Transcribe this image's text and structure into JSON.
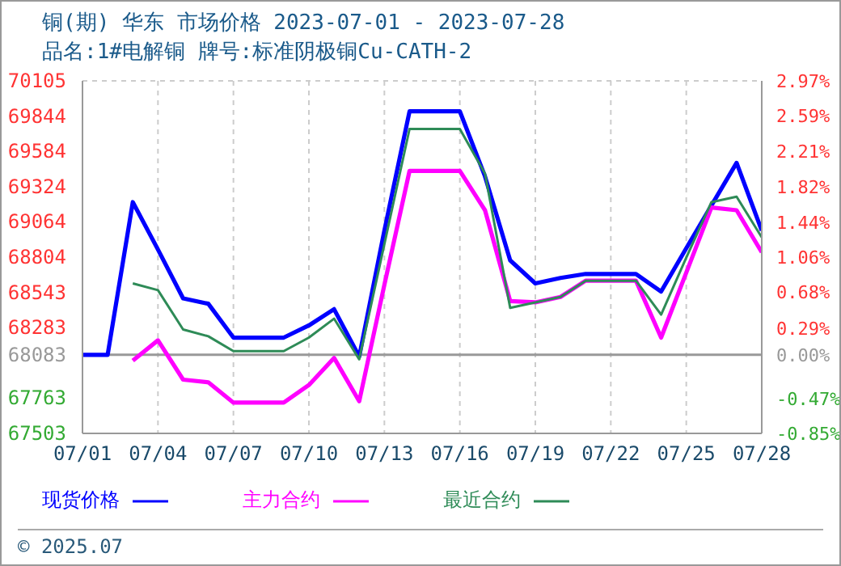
{
  "chart_data": {
    "type": "line",
    "title": "铜(期) 华东 市场价格 2023-07-01 - 2023-07-28",
    "subtitle": "品名:1#电解铜 牌号:标准阴极铜Cu-CATH-2",
    "x": [
      "2023-07-01",
      "2023-07-02",
      "2023-07-03",
      "2023-07-04",
      "2023-07-05",
      "2023-07-06",
      "2023-07-07",
      "2023-07-08",
      "2023-07-09",
      "2023-07-10",
      "2023-07-11",
      "2023-07-12",
      "2023-07-13",
      "2023-07-14",
      "2023-07-15",
      "2023-07-16",
      "2023-07-17",
      "2023-07-18",
      "2023-07-19",
      "2023-07-20",
      "2023-07-21",
      "2023-07-22",
      "2023-07-23",
      "2023-07-24",
      "2023-07-25",
      "2023-07-26",
      "2023-07-27",
      "2023-07-28"
    ],
    "series": [
      {
        "name": "现货价格",
        "color": "#0000ff",
        "values": [
          68083,
          68083,
          69210,
          68860,
          68500,
          68460,
          68210,
          68210,
          68210,
          68300,
          68420,
          68070,
          69000,
          69880,
          69880,
          69880,
          69400,
          68780,
          68610,
          68650,
          68680,
          68680,
          68680,
          68550,
          68870,
          69185,
          69500,
          69000
        ]
      },
      {
        "name": "主力合约",
        "color": "#ff00ff",
        "values": [
          null,
          null,
          68040,
          68190,
          67900,
          67880,
          67730,
          67730,
          67730,
          67860,
          68060,
          67740,
          68600,
          69440,
          69440,
          69440,
          69150,
          68480,
          68470,
          68510,
          68630,
          68630,
          68630,
          68210,
          68690,
          69170,
          69150,
          68840
        ]
      },
      {
        "name": "最近合约",
        "color": "#2e8b57",
        "values": [
          null,
          null,
          68610,
          68560,
          68270,
          68220,
          68110,
          68110,
          68110,
          68210,
          68350,
          68050,
          68900,
          69750,
          69750,
          69750,
          69420,
          68430,
          68470,
          68510,
          68630,
          68630,
          68630,
          68380,
          68800,
          69210,
          69250,
          68950
        ]
      }
    ],
    "xlim": [
      "2023-07-01",
      "2023-07-28"
    ],
    "xticks": [
      {
        "value": "2023-07-01",
        "label": "07/01"
      },
      {
        "value": "2023-07-04",
        "label": "07/04"
      },
      {
        "value": "2023-07-07",
        "label": "07/07"
      },
      {
        "value": "2023-07-10",
        "label": "07/10"
      },
      {
        "value": "2023-07-13",
        "label": "07/13"
      },
      {
        "value": "2023-07-16",
        "label": "07/16"
      },
      {
        "value": "2023-07-19",
        "label": "07/19"
      },
      {
        "value": "2023-07-22",
        "label": "07/22"
      },
      {
        "value": "2023-07-25",
        "label": "07/25"
      },
      {
        "value": "2023-07-28",
        "label": "07/28"
      }
    ],
    "ylim": [
      67503,
      70105
    ],
    "yticks": [
      67503,
      67763,
      68083,
      68283,
      68543,
      68804,
      69064,
      69324,
      69584,
      69844,
      70105
    ],
    "y2lim": [
      -0.85,
      2.97
    ],
    "y2ticks": [
      {
        "value": -0.85,
        "label": "-0.85%"
      },
      {
        "value": -0.47,
        "label": "-0.47%"
      },
      {
        "value": 0,
        "label": "0.00%"
      },
      {
        "value": 0.29,
        "label": "0.29%"
      },
      {
        "value": 0.68,
        "label": "0.68%"
      },
      {
        "value": 1.06,
        "label": "1.06%"
      },
      {
        "value": 1.44,
        "label": "1.44%"
      },
      {
        "value": 1.82,
        "label": "1.82%"
      },
      {
        "value": 2.21,
        "label": "2.21%"
      },
      {
        "value": 2.59,
        "label": "2.59%"
      },
      {
        "value": 2.97,
        "label": "2.97%"
      }
    ],
    "ref_lines": [
      {
        "axis": "y",
        "value": 68083,
        "color": "#999999"
      }
    ],
    "grid": true,
    "legend": "bottom",
    "marker": "none",
    "line_style": "solid",
    "annotations": [
      "© 2025.07"
    ]
  }
}
